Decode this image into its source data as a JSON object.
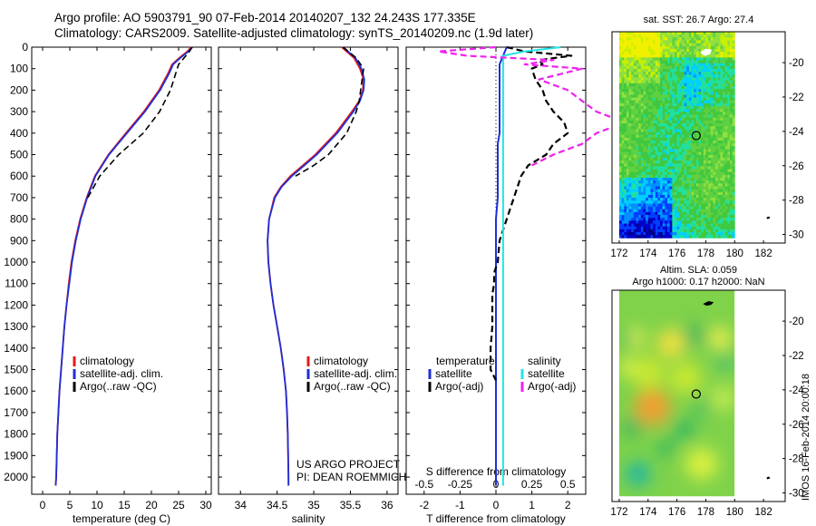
{
  "header": {
    "line1": "Argo profile: AO 5903791_90 07-Feb-2014 20140207_132 24.243S 177.335E",
    "line2": "Climatology: CARS2009. Satellite-adjusted climatology: synTS_20140209.nc (1.9d later)"
  },
  "credits": {
    "project": "US ARGO PROJECT",
    "pi": "PI: DEAN ROEMMICH"
  },
  "side_label": "IMOS 16-Feb-2014 20:00:18",
  "colors": {
    "climatology": "#e41a1c",
    "satellite": "#1f2fd6",
    "argo": "#000000",
    "sat_salinity": "#22e5e5",
    "argo_salinity": "#ee22ee"
  },
  "chart_data": [
    {
      "type": "line",
      "xlabel": "temperature (deg C)",
      "ylabel": "",
      "xlim": [
        -2,
        31
      ],
      "ylim": [
        2080,
        0
      ],
      "xticks": [
        0,
        5,
        10,
        15,
        20,
        25,
        30
      ],
      "yticks": [
        0,
        100,
        200,
        300,
        400,
        500,
        600,
        700,
        800,
        900,
        1000,
        1100,
        1200,
        1300,
        1400,
        1500,
        1600,
        1700,
        1800,
        1900,
        2000
      ],
      "legend": [
        "climatology",
        "satellite-adj. clim.",
        "Argo(..raw -QC)"
      ],
      "depth": [
        0,
        20,
        50,
        80,
        120,
        200,
        300,
        400,
        500,
        600,
        700,
        800,
        900,
        1000,
        1100,
        1200,
        1300,
        1400,
        1500,
        1600,
        1700,
        1800,
        1900,
        2000,
        2040
      ],
      "series": [
        {
          "name": "climatology",
          "style": "solid",
          "values": [
            27.3,
            26.6,
            25.1,
            23.8,
            23.1,
            21.4,
            18.6,
            15.3,
            12.1,
            9.6,
            8.1,
            6.9,
            6.0,
            5.3,
            4.8,
            4.4,
            4.0,
            3.7,
            3.4,
            3.1,
            2.9,
            2.7,
            2.6,
            2.5,
            2.4
          ]
        },
        {
          "name": "satellite-adj. clim.",
          "style": "solid",
          "values": [
            27.5,
            26.8,
            25.3,
            24.0,
            23.3,
            21.6,
            18.8,
            15.5,
            12.2,
            9.7,
            8.2,
            7.0,
            6.1,
            5.4,
            4.9,
            4.4,
            4.0,
            3.7,
            3.4,
            3.1,
            2.9,
            2.7,
            2.6,
            2.5,
            2.4
          ]
        },
        {
          "name": "Argo(..raw -QC)",
          "style": "dashed",
          "values": [
            27.5,
            27.0,
            26.0,
            25.0,
            24.5,
            23.5,
            21.5,
            18.5,
            14.0,
            10.5,
            8.3,
            null,
            null,
            null,
            null,
            null,
            null,
            null,
            null,
            null,
            null,
            null,
            null,
            null,
            null
          ]
        }
      ]
    },
    {
      "type": "line",
      "xlabel": "salinity",
      "ylabel": "",
      "xlim": [
        33.7,
        36.15
      ],
      "ylim": [
        2080,
        0
      ],
      "xticks": [
        34,
        34.5,
        35,
        35.5,
        36
      ],
      "xticklabels": [
        "34",
        "34.5",
        "35",
        "35.5",
        "36"
      ],
      "legend": [
        "climatology",
        "satellite-adj. clim.",
        "Argo(..raw -QC)"
      ],
      "depth": [
        0,
        50,
        100,
        150,
        200,
        250,
        300,
        400,
        500,
        550,
        600,
        650,
        700,
        800,
        900,
        1000,
        1100,
        1200,
        1300,
        1400,
        1500,
        1600,
        1700,
        1800,
        1900,
        2000,
        2040
      ],
      "series": [
        {
          "name": "climatology",
          "style": "solid",
          "values": [
            35.38,
            35.55,
            35.63,
            35.68,
            35.67,
            35.62,
            35.52,
            35.3,
            35.02,
            34.85,
            34.68,
            34.55,
            34.46,
            34.39,
            34.37,
            34.38,
            34.41,
            34.45,
            34.5,
            34.55,
            34.59,
            34.62,
            34.635,
            34.645,
            34.65,
            34.655,
            34.655
          ]
        },
        {
          "name": "satellite-adj. clim.",
          "style": "solid",
          "values": [
            35.4,
            35.57,
            35.65,
            35.69,
            35.68,
            35.63,
            35.54,
            35.32,
            35.04,
            34.87,
            34.7,
            34.56,
            34.47,
            34.39,
            34.37,
            34.38,
            34.41,
            34.45,
            34.5,
            34.55,
            34.59,
            34.62,
            34.635,
            34.645,
            34.65,
            34.655,
            34.655
          ]
        },
        {
          "name": "Argo(..raw -QC)",
          "style": "dashed",
          "values": [
            35.4,
            35.58,
            35.68,
            35.66,
            35.64,
            35.62,
            35.58,
            35.45,
            35.2,
            35.0,
            34.75,
            null,
            null,
            null,
            null,
            null,
            null,
            null,
            null,
            null,
            null,
            null,
            null,
            null,
            null,
            null,
            null
          ]
        }
      ]
    },
    {
      "type": "line",
      "xlabel": "T difference from climatology",
      "ylabel": "",
      "top_xlabel": "S difference from climatology",
      "xlim": [
        -2.5,
        2.5
      ],
      "ylim": [
        2080,
        0
      ],
      "xticks": [
        -2,
        -1,
        0,
        1,
        2
      ],
      "top_xticks": [
        -0.5,
        -0.25,
        0,
        0.25,
        0.5
      ],
      "legend_titles": [
        "temperature",
        "salinity"
      ],
      "legend": [
        "satellite",
        "Argo(-adj)",
        "satellite",
        "Argo(-adj)"
      ],
      "depth": [
        0,
        20,
        40,
        60,
        80,
        100,
        150,
        200,
        250,
        300,
        350,
        400,
        450,
        500,
        550,
        600,
        650,
        700,
        800,
        900,
        1000,
        1050,
        1100,
        1150,
        1200,
        1300,
        1400,
        1500,
        1550,
        1600,
        1800,
        2000,
        2040
      ],
      "series": [
        {
          "name": "satellite",
          "quantity": "temperature",
          "style": "solid",
          "values": [
            0.3,
            0.25,
            0.2,
            0.15,
            0.1,
            0.1,
            0.1,
            0.1,
            0.1,
            0.1,
            0.1,
            0.1,
            0.05,
            0.05,
            0.05,
            0.05,
            0.05,
            0.05,
            0.0,
            0.0,
            0.0,
            0.0,
            0.0,
            0.0,
            0.0,
            0.0,
            0.0,
            0.0,
            0.0,
            0.0,
            0.0,
            0.0,
            0.0
          ]
        },
        {
          "name": "Argo(-adj)",
          "quantity": "temperature",
          "style": "dashed",
          "values": [
            0.3,
            0.8,
            2.1,
            1.2,
            1.3,
            1.0,
            1.1,
            1.3,
            1.4,
            1.6,
            1.9,
            2.0,
            1.6,
            1.4,
            0.9,
            0.7,
            0.6,
            0.5,
            0.3,
            0.1,
            0.05,
            -0.05,
            -0.05,
            -0.1,
            -0.1,
            -0.1,
            -0.15,
            -0.15,
            0.0,
            null,
            null,
            null,
            null
          ]
        },
        {
          "name": "satellite",
          "quantity": "salinity",
          "style": "solid",
          "values": [
            0.45,
            0.2,
            0.05,
            0.05,
            0.05,
            0.05,
            0.05,
            0.05,
            0.05,
            0.05,
            0.05,
            0.05,
            0.05,
            0.05,
            0.05,
            0.05,
            0.05,
            0.05,
            0.05,
            0.05,
            0.05,
            0.05,
            0.05,
            0.05,
            0.05,
            0.05,
            0.05,
            0.05,
            0.05,
            0.05,
            0.05,
            0.05,
            0.05
          ]
        },
        {
          "name": "Argo(-adj)",
          "quantity": "salinity",
          "style": "dashed",
          "values": [
            0.0,
            -0.4,
            -0.2,
            0.4,
            0.2,
            0.6,
            0.3,
            0.5,
            0.6,
            0.7,
            0.9,
            0.7,
            0.6,
            0.4,
            0.25,
            null,
            null,
            null,
            null,
            null,
            null,
            null,
            null,
            null,
            null,
            null,
            null,
            null,
            null,
            null,
            null,
            null,
            null
          ]
        }
      ]
    },
    {
      "type": "heatmap",
      "title": "sat. SST: 26.7 Argo: 27.4",
      "xlim": [
        171.5,
        183.5
      ],
      "ylim": [
        -30.5,
        -18.2
      ],
      "xticks": [
        172,
        174,
        176,
        178,
        180,
        182
      ],
      "yticks": [
        -20,
        -22,
        -24,
        -26,
        -28,
        -30
      ],
      "marker": {
        "lon": 177.335,
        "lat": -24.243
      }
    },
    {
      "type": "heatmap",
      "title": "Altim. SLA: 0.059",
      "subtitle": "Argo h1000: 0.17 h2000: NaN",
      "xlim": [
        171.5,
        183.5
      ],
      "ylim": [
        -30.5,
        -18.2
      ],
      "xticks": [
        172,
        174,
        176,
        178,
        180,
        182
      ],
      "yticks": [
        -20,
        -22,
        -24,
        -26,
        -28,
        -30
      ],
      "marker": {
        "lon": 177.335,
        "lat": -24.243
      }
    }
  ]
}
